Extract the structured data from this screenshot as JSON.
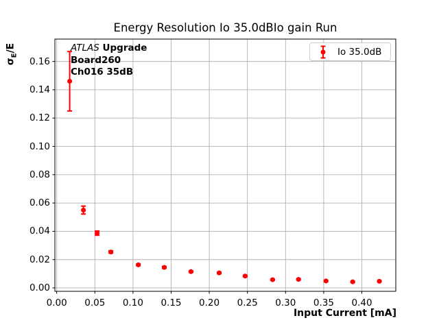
{
  "chart_data": {
    "type": "scatter",
    "title": "Energy Resolution Io 35.0dBIo gain Run",
    "xlabel": "Input Current [mA]",
    "ylabel": "σ_E/E",
    "ylabel_parts": {
      "main": "σ",
      "sub": "E",
      "rest": "/E"
    },
    "xlim": [
      -0.0024,
      0.4445
    ],
    "ylim": [
      -0.0024,
      0.1758
    ],
    "grid": true,
    "legend_position": "upper right",
    "xticks": [
      {
        "v": 0.0,
        "label": "0.00"
      },
      {
        "v": 0.05,
        "label": "0.05"
      },
      {
        "v": 0.1,
        "label": "0.10"
      },
      {
        "v": 0.15,
        "label": "0.15"
      },
      {
        "v": 0.2,
        "label": "0.20"
      },
      {
        "v": 0.25,
        "label": "0.25"
      },
      {
        "v": 0.3,
        "label": "0.30"
      },
      {
        "v": 0.35,
        "label": "0.35"
      },
      {
        "v": 0.4,
        "label": "0.40"
      }
    ],
    "yticks": [
      {
        "v": 0.0,
        "label": "0.00"
      },
      {
        "v": 0.02,
        "label": "0.02"
      },
      {
        "v": 0.04,
        "label": "0.04"
      },
      {
        "v": 0.06,
        "label": "0.06"
      },
      {
        "v": 0.08,
        "label": "0.08"
      },
      {
        "v": 0.1,
        "label": "0.10"
      },
      {
        "v": 0.12,
        "label": "0.12"
      },
      {
        "v": 0.14,
        "label": "0.14"
      },
      {
        "v": 0.16,
        "label": "0.16"
      }
    ],
    "series": [
      {
        "name": "Io 35.0dB",
        "color": "#ff0000",
        "marker": "circle",
        "points": [
          {
            "x": 0.017,
            "y": 0.146,
            "yerr": 0.021
          },
          {
            "x": 0.035,
            "y": 0.055,
            "yerr": 0.0028
          },
          {
            "x": 0.053,
            "y": 0.0387,
            "yerr": 0.0015
          },
          {
            "x": 0.071,
            "y": 0.0254,
            "yerr": 0.0008
          },
          {
            "x": 0.107,
            "y": 0.0163,
            "yerr": 0.0006
          },
          {
            "x": 0.141,
            "y": 0.0145,
            "yerr": 0.0006
          },
          {
            "x": 0.176,
            "y": 0.0115,
            "yerr": 0.0005
          },
          {
            "x": 0.213,
            "y": 0.0106,
            "yerr": 0.0005
          },
          {
            "x": 0.247,
            "y": 0.0084,
            "yerr": 0.0005
          },
          {
            "x": 0.283,
            "y": 0.0058,
            "yerr": 0.0004
          },
          {
            "x": 0.317,
            "y": 0.006,
            "yerr": 0.0004
          },
          {
            "x": 0.353,
            "y": 0.0049,
            "yerr": 0.0004
          },
          {
            "x": 0.388,
            "y": 0.0043,
            "yerr": 0.0004
          },
          {
            "x": 0.423,
            "y": 0.0047,
            "yerr": 0.0004
          }
        ]
      }
    ],
    "colors": {
      "grid": "#b0b0b0",
      "spine": "#000000",
      "legend_edge": "#cccccc",
      "background": "#ffffff",
      "series": "#ff0000"
    }
  },
  "annotation": {
    "experiment": "ATLAS",
    "tag": " Upgrade",
    "board": "Board260",
    "channel": "Ch016 35dB"
  }
}
